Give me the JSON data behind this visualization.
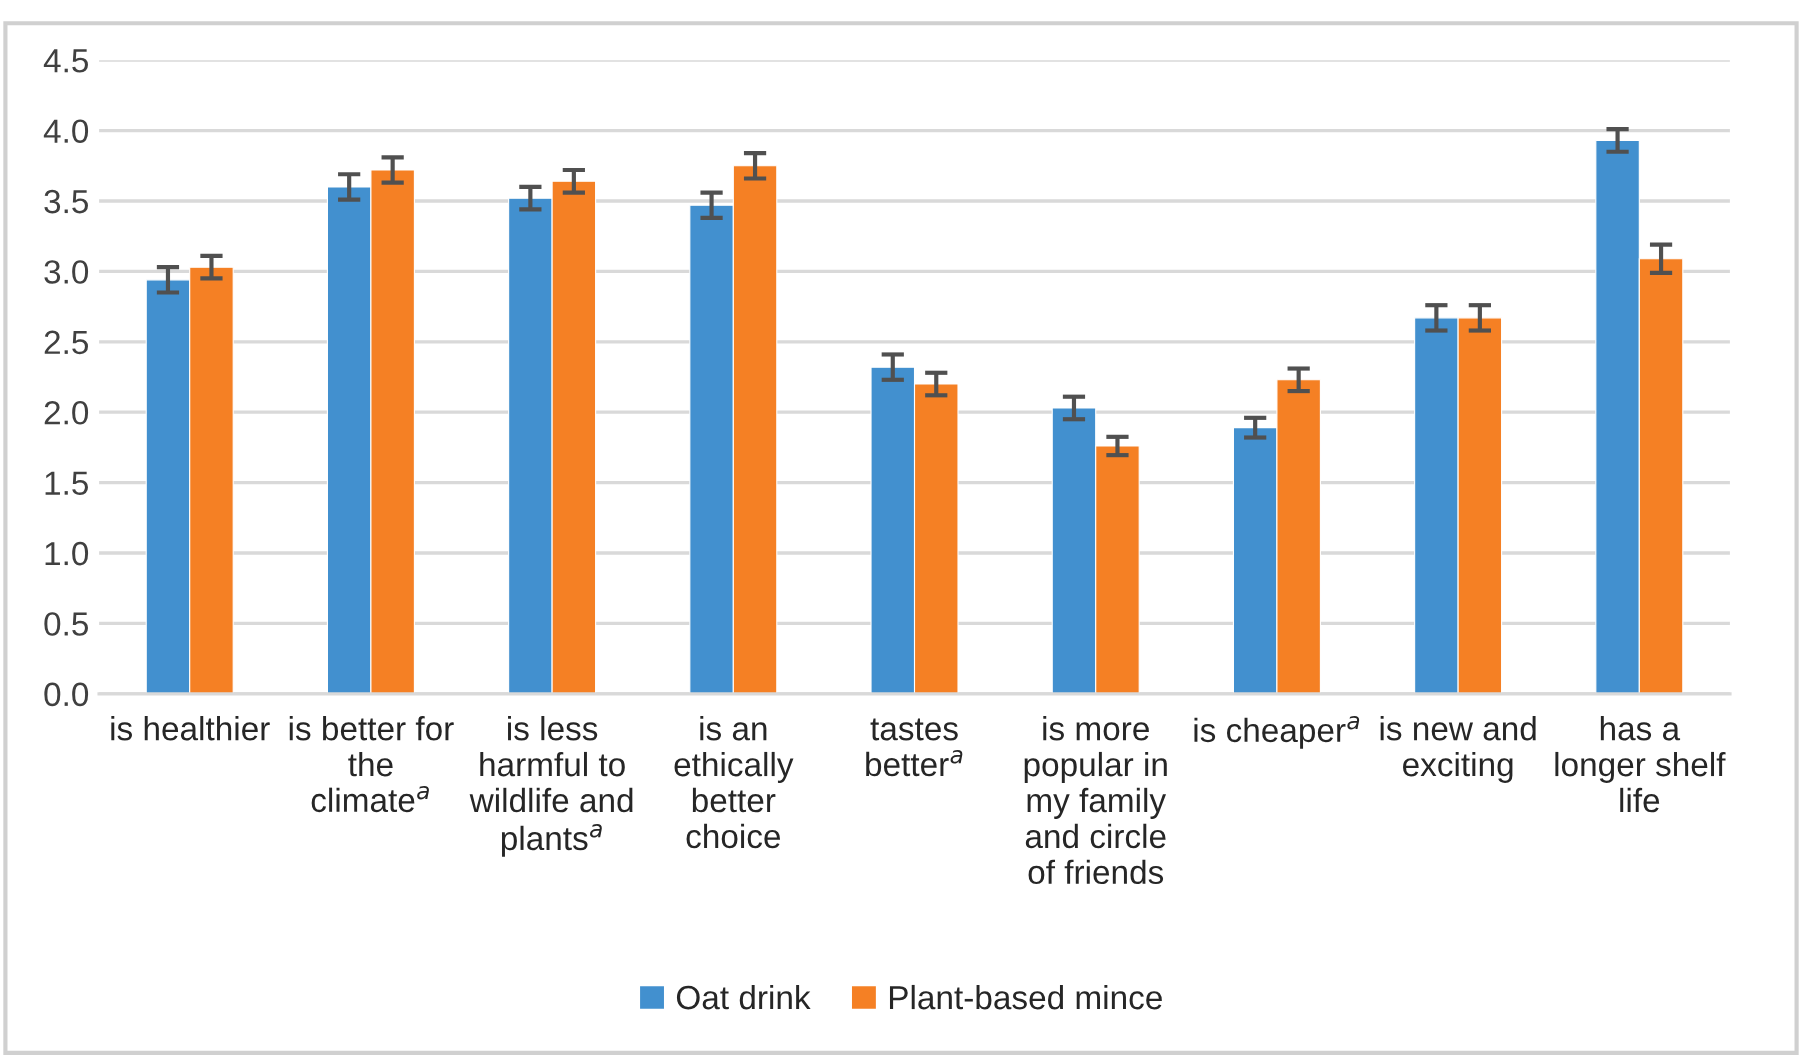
{
  "chart_data": {
    "type": "bar",
    "categories": [
      "is healthier",
      "is better for\nthe\nclimate$^{a}$",
      "is less\nharmful to\nwildlife and\nplants$^{a}$",
      "is an\nethically\nbetter\nchoice",
      "tastes\nbetter$^{a}$",
      "is more\npopular in\nmy family\nand circle\nof friends",
      "is cheaper$^{a}$",
      "is new and\nexciting",
      "has a\nlonger shelf\nlife"
    ],
    "series": [
      {
        "name": "Oat drink",
        "color": "#4290cf",
        "values": [
          2.94,
          3.6,
          3.52,
          3.47,
          2.32,
          2.03,
          1.89,
          2.67,
          3.93
        ],
        "errors": [
          0.09,
          0.09,
          0.08,
          0.09,
          0.09,
          0.08,
          0.07,
          0.09,
          0.08
        ]
      },
      {
        "name": "Plant-based mince",
        "color": "#f58024",
        "values": [
          3.03,
          3.72,
          3.64,
          3.75,
          2.2,
          1.76,
          2.23,
          2.67,
          3.09
        ],
        "errors": [
          0.08,
          0.09,
          0.08,
          0.09,
          0.08,
          0.065,
          0.08,
          0.09,
          0.1
        ]
      }
    ],
    "ylim": [
      0,
      4.5
    ],
    "yticks": [
      {
        "value": 0,
        "label": "0.0"
      },
      {
        "value": 0.5,
        "label": "0.5"
      },
      {
        "value": 1,
        "label": "1.0"
      },
      {
        "value": 1.5,
        "label": "1.5"
      },
      {
        "value": 2,
        "label": "2.0"
      },
      {
        "value": 2.5,
        "label": "2.5"
      },
      {
        "value": 3,
        "label": "3.0"
      },
      {
        "value": 3.5,
        "label": "3.5"
      },
      {
        "value": 4,
        "label": "4.0"
      },
      {
        "value": 4.5,
        "label": "4.5"
      }
    ],
    "grid": "y",
    "legend": "bottom"
  }
}
